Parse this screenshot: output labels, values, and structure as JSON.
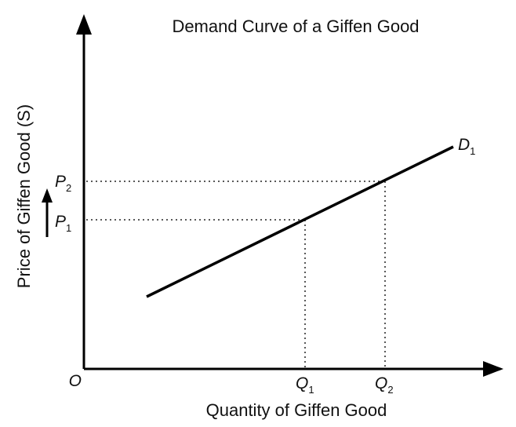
{
  "title": "Demand Curve of a Giffen Good",
  "axes": {
    "y_label": "Price of Giffen Good (S)",
    "x_label": "Quantity of Giffen Good",
    "origin": "O"
  },
  "labels": {
    "p1": {
      "main": "P",
      "sub": "1"
    },
    "p2": {
      "main": "P",
      "sub": "2"
    },
    "q1": {
      "main": "Q",
      "sub": "1"
    },
    "q2": {
      "main": "Q",
      "sub": "2"
    },
    "d1": {
      "main": "D",
      "sub": "1"
    }
  }
}
